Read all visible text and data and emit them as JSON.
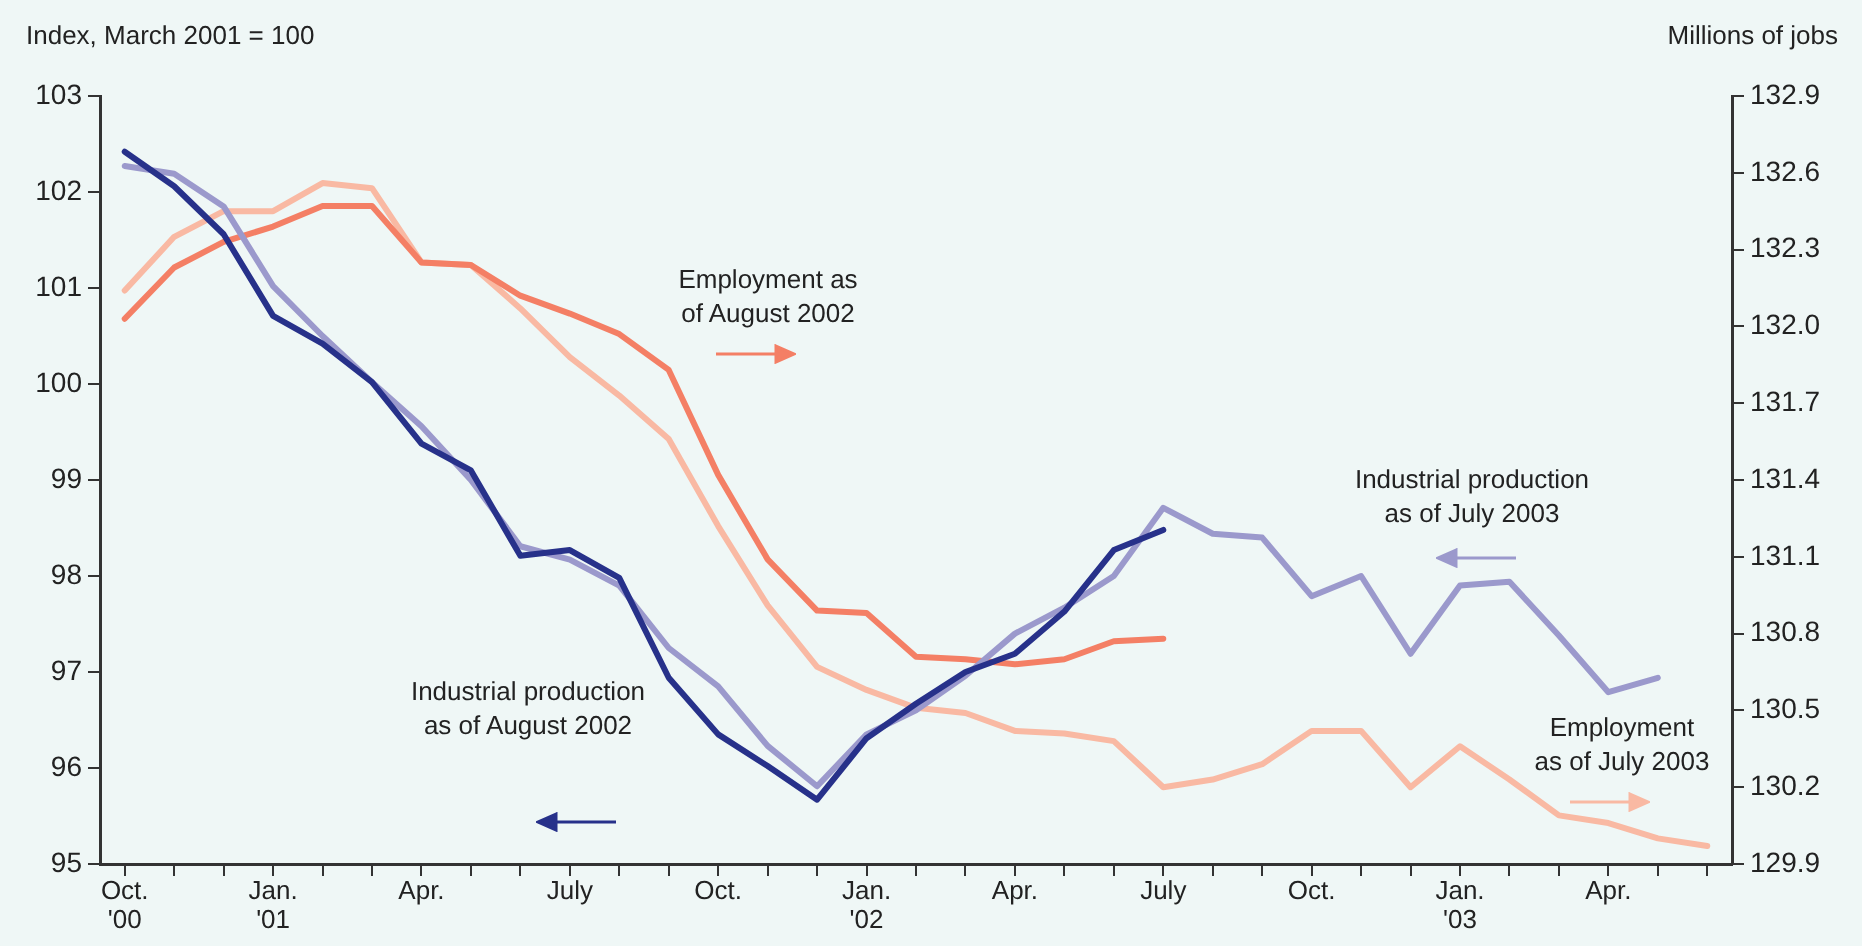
{
  "chart_data": {
    "type": "line",
    "ylabel": "Index, March 2001 = 100",
    "y2label": "Millions of jobs",
    "categories": [
      "Oct. '00",
      null,
      null,
      "Jan. '01",
      null,
      null,
      "Apr.",
      null,
      null,
      "July",
      null,
      null,
      "Oct.",
      null,
      null,
      "Jan. '02",
      null,
      null,
      "Apr.",
      null,
      null,
      "July",
      null,
      null,
      "Oct.",
      null,
      null,
      "Jan. '03",
      null,
      null,
      "Apr.",
      null,
      null
    ],
    "series": [
      {
        "name": "Industrial production as of August 2002",
        "color": "#27318a",
        "values": [
          102.42,
          102.06,
          101.56,
          100.71,
          100.42,
          100.02,
          99.38,
          99.1,
          98.21,
          98.27,
          97.98,
          96.94,
          96.35,
          96.02,
          95.67,
          96.31,
          96.67,
          97.0,
          97.19,
          97.63,
          98.27,
          98.48,
          null,
          null,
          null,
          null,
          null,
          null,
          null,
          null,
          null,
          null,
          null
        ]
      },
      {
        "name": "Industrial production as of July 2003",
        "color": "#9b99cc",
        "values": [
          102.27,
          102.19,
          101.85,
          101.02,
          100.5,
          100.02,
          99.56,
          99.0,
          98.31,
          98.17,
          97.9,
          97.25,
          96.85,
          96.23,
          95.81,
          96.35,
          96.6,
          96.96,
          97.4,
          97.67,
          98.0,
          98.71,
          98.44,
          98.4,
          97.79,
          98.0,
          97.19,
          97.9,
          97.94,
          97.38,
          96.79,
          96.94,
          null
        ]
      },
      {
        "name": "Employment as of August 2002",
        "color": "#f47f65",
        "axis": "y2",
        "values": [
          132.03,
          132.23,
          132.33,
          132.39,
          132.47,
          132.47,
          132.25,
          132.24,
          132.12,
          132.05,
          131.97,
          131.83,
          131.42,
          131.09,
          130.89,
          130.88,
          130.71,
          130.7,
          130.68,
          130.7,
          130.77,
          130.78,
          null,
          null,
          null,
          null,
          null,
          null,
          null,
          null,
          null,
          null,
          null
        ]
      },
      {
        "name": "Employment as of July 2003",
        "color": "#f9b9a3",
        "axis": "y2",
        "values": [
          132.14,
          132.35,
          132.45,
          132.45,
          132.56,
          132.54,
          132.25,
          132.24,
          132.07,
          131.88,
          131.73,
          131.56,
          131.22,
          130.91,
          130.67,
          130.58,
          130.51,
          130.49,
          130.42,
          130.41,
          130.38,
          130.2,
          130.23,
          130.29,
          130.42,
          130.42,
          130.2,
          130.36,
          130.23,
          130.09,
          130.06,
          130.0,
          129.97
        ]
      }
    ],
    "ylim": [
      95,
      103
    ],
    "yticks": [
      95,
      96,
      97,
      98,
      99,
      100,
      101,
      102,
      103
    ],
    "y2lim": [
      129.9,
      132.9
    ],
    "y2ticks": [
      129.9,
      130.2,
      130.5,
      130.8,
      131.1,
      131.4,
      131.7,
      {
        "value": 132,
        "label": "132.0"
      },
      132.3,
      132.6,
      132.9
    ],
    "grid": false,
    "legend": false,
    "marker": "none",
    "line_style": "solid"
  }
}
